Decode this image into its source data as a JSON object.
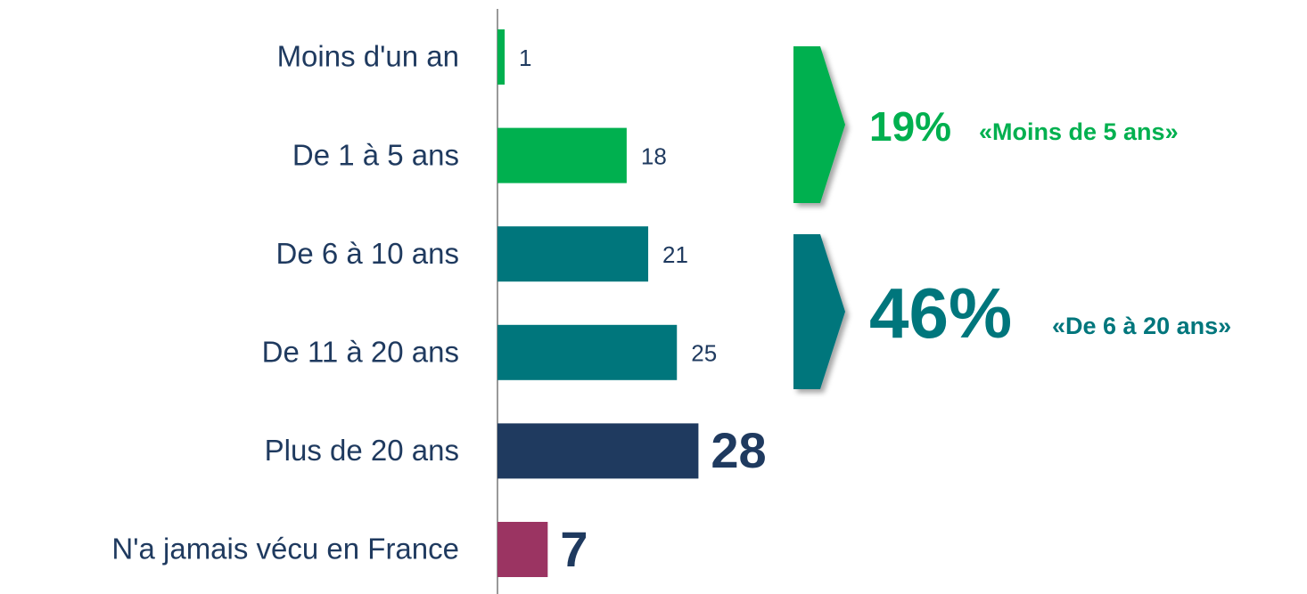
{
  "chart_data": {
    "type": "hbar",
    "categories": [
      "Moins d'un an",
      "De 1 à 5 ans",
      "De 6 à 10 ans",
      "De 11 à 20 ans",
      "Plus de 20 ans",
      "N'a jamais vécu en France"
    ],
    "values": [
      1,
      18,
      21,
      25,
      28,
      7
    ],
    "colors": [
      "#00b04f",
      "#00b04f",
      "#00767c",
      "#00767c",
      "#1f3a5f",
      "#9b3462"
    ],
    "xlim": [
      0,
      100
    ],
    "annotations": [
      {
        "value": 19,
        "label": "19%",
        "text": "«Moins de 5 ans»",
        "color": "#00b04f"
      },
      {
        "value": 46,
        "label": "46%",
        "text": "«De 6 à 20 ans»",
        "color": "#00767c"
      }
    ]
  }
}
